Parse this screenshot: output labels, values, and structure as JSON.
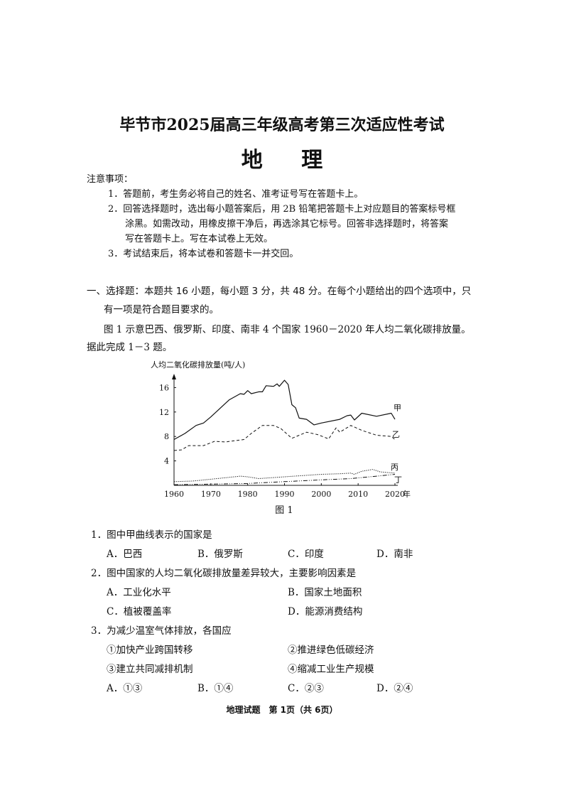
{
  "title": "毕节市2025届高三年级高考第三次适应性考试",
  "subject": "地 理",
  "notice": {
    "heading": "注意事项：",
    "items": [
      "1．答题前，考生务必将自己的姓名、准考证号写在答题卡上。",
      "2．回答选择题时，选出每小题答案后，用 2B 铅笔把答题卡上对应题目的答案标号框",
      "涂黑。如需改动，用橡皮擦干净后，再选涂其它标号。回答非选择题时，将答案",
      "写在答题卡上。写在本试卷上无效。",
      "3．考试结束后，将本试卷和答题卡一并交回。"
    ]
  },
  "section": {
    "line1": "一、选择题：本题共 16 小题，每小题 3 分，共 48 分。在每个小题给出的四个选项中，只",
    "line2": "有一项是符合题目要求的。"
  },
  "intro": {
    "line1": "图 1 示意巴西、俄罗斯、印度、南非 4 个国家 1960－2020 年人均二氧化碳排放量。",
    "line2": "据此完成 1－3 题。"
  },
  "chart_data": {
    "type": "line",
    "ylabel": "人均二氧化碳排放量(吨/人)",
    "xunit": "年",
    "caption": "图 1",
    "xticks": [
      1960,
      1970,
      1980,
      1990,
      2000,
      2010,
      2020
    ],
    "yticks": [
      4,
      8,
      12,
      16
    ],
    "xlim": [
      1960,
      2020
    ],
    "ylim": [
      0,
      18
    ],
    "series": [
      {
        "name": "甲",
        "style": "solid",
        "points": [
          [
            1960,
            7.5
          ],
          [
            1963,
            8.5
          ],
          [
            1966,
            9.8
          ],
          [
            1968,
            10.2
          ],
          [
            1970,
            11.2
          ],
          [
            1975,
            14
          ],
          [
            1978,
            15
          ],
          [
            1979,
            14.9
          ],
          [
            1980,
            15.5
          ],
          [
            1981,
            15
          ],
          [
            1983,
            15.3
          ],
          [
            1984,
            15.3
          ],
          [
            1985,
            16.3
          ],
          [
            1987,
            16.2
          ],
          [
            1988,
            16.6
          ],
          [
            1988.6,
            16.2
          ],
          [
            1990,
            17.2
          ],
          [
            1991,
            16.5
          ],
          [
            1992,
            13.2
          ],
          [
            1993,
            12.7
          ],
          [
            1994,
            11
          ],
          [
            1996,
            10.8
          ],
          [
            1998,
            9.9
          ],
          [
            2000,
            10.2
          ],
          [
            2005,
            10.8
          ],
          [
            2007,
            11.4
          ],
          [
            2008,
            11.5
          ],
          [
            2009,
            10.7
          ],
          [
            2011,
            11.8
          ],
          [
            2015,
            11.3
          ],
          [
            2019,
            11.8
          ],
          [
            2020,
            10.8
          ]
        ]
      },
      {
        "name": "乙",
        "style": "dashed",
        "points": [
          [
            1960,
            5.7
          ],
          [
            1962,
            5.8
          ],
          [
            1964,
            6.5
          ],
          [
            1968,
            6.5
          ],
          [
            1971,
            7.2
          ],
          [
            1974,
            7.1
          ],
          [
            1979,
            7.5
          ],
          [
            1981,
            8.5
          ],
          [
            1984,
            9.8
          ],
          [
            1987,
            9.8
          ],
          [
            1989,
            9.3
          ],
          [
            1992,
            7.7
          ],
          [
            1996,
            8.7
          ],
          [
            1999,
            8.3
          ],
          [
            2002,
            7.6
          ],
          [
            2004,
            9.4
          ],
          [
            2005,
            8.7
          ],
          [
            2008,
            9.8
          ],
          [
            2011,
            9.0
          ],
          [
            2015,
            8.2
          ],
          [
            2019,
            8.0
          ],
          [
            2020,
            7.5
          ]
        ]
      },
      {
        "name": "丙",
        "style": "dotted",
        "points": [
          [
            1960,
            0.6
          ],
          [
            1965,
            0.7
          ],
          [
            1970,
            1.0
          ],
          [
            1978,
            1.5
          ],
          [
            1980,
            1.4
          ],
          [
            1983,
            1.1
          ],
          [
            1990,
            1.4
          ],
          [
            2000,
            1.8
          ],
          [
            2005,
            1.9
          ],
          [
            2008,
            2.0
          ],
          [
            2009,
            1.8
          ],
          [
            2011,
            2.3
          ],
          [
            2014,
            2.6
          ],
          [
            2016,
            2.2
          ],
          [
            2020,
            2.0
          ]
        ]
      },
      {
        "name": "丁",
        "style": "dash-dot",
        "points": [
          [
            1960,
            0.1
          ],
          [
            1970,
            0.2
          ],
          [
            1980,
            0.3
          ],
          [
            1990,
            0.6
          ],
          [
            2000,
            0.9
          ],
          [
            2008,
            1.1
          ],
          [
            2015,
            1.5
          ],
          [
            2020,
            1.8
          ]
        ]
      }
    ]
  },
  "questions": [
    {
      "stem": "1．图中甲曲线表示的国家是",
      "options": [
        "A．巴西",
        "B．俄罗斯",
        "C．印度",
        "D．南非"
      ]
    },
    {
      "stem": "2．图中国家的人均二氧化碳排放量差异较大，主要影响因素是",
      "options": [
        "A．工业化水平",
        "B．国家土地面积",
        "C．植被覆盖率",
        "D．能源消费结构"
      ]
    },
    {
      "stem": "3．为减少温室气体排放，各国应",
      "items": [
        "①加快产业跨国转移",
        "②推进绿色低碳经济",
        "③建立共同减排机制",
        "④缩减工业生产规模"
      ],
      "options": [
        "A．①③",
        "B．①④",
        "C．②③",
        "D．②④"
      ]
    }
  ],
  "footer": "地理试题　第 1页（共 6页）"
}
